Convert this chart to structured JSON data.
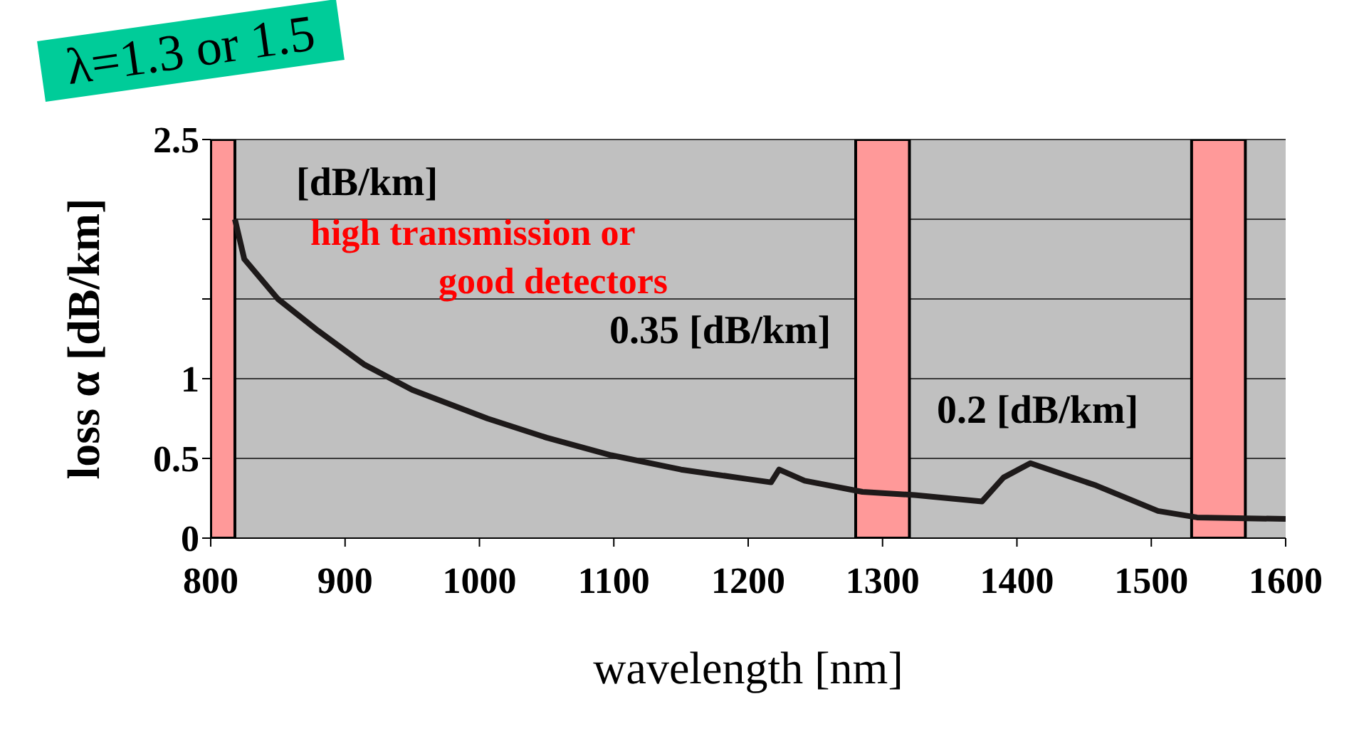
{
  "chart_data": {
    "type": "line",
    "xlabel": "wavelength [nm]",
    "ylabel": "loss α [dB/km]",
    "x": [
      818,
      825,
      850,
      880,
      914,
      950,
      1006,
      1050,
      1098,
      1150,
      1200,
      1217,
      1223,
      1242,
      1285,
      1324,
      1374,
      1390,
      1410,
      1459,
      1505,
      1534,
      1600
    ],
    "series": [
      {
        "color": "#1e1a1a",
        "values": [
          2.0,
          1.75,
          1.5,
          1.3,
          1.09,
          0.93,
          0.75,
          0.63,
          0.52,
          0.43,
          0.37,
          0.35,
          0.43,
          0.36,
          0.29,
          0.27,
          0.23,
          0.38,
          0.47,
          0.33,
          0.17,
          0.13,
          0.12
        ]
      }
    ],
    "xlim": [
      800,
      1600
    ],
    "xticks": [
      800,
      900,
      1000,
      1100,
      1200,
      1300,
      1400,
      1500,
      1600
    ],
    "ylim": [
      0,
      2.5
    ],
    "yticks": [
      0,
      0.5,
      1,
      {
        "value": 1.5,
        "label": null
      },
      {
        "value": 2,
        "label": null
      },
      2.5
    ],
    "grid": "y",
    "marker": "none",
    "line_style": "solid",
    "bands": [
      {
        "axis": "x",
        "from": 800,
        "to": 818,
        "color": "#ff9999"
      },
      {
        "axis": "x",
        "from": 1280,
        "to": 1320,
        "color": "#ff9999"
      },
      {
        "axis": "x",
        "from": 1530,
        "to": 1570,
        "color": "#ff9999"
      }
    ],
    "annotations": [
      "λ=1.3 or 1.5",
      "[dB/km]",
      "high transmission or",
      "good detectors",
      "0.35 [dB/km]",
      "0.2 [dB/km]"
    ]
  }
}
